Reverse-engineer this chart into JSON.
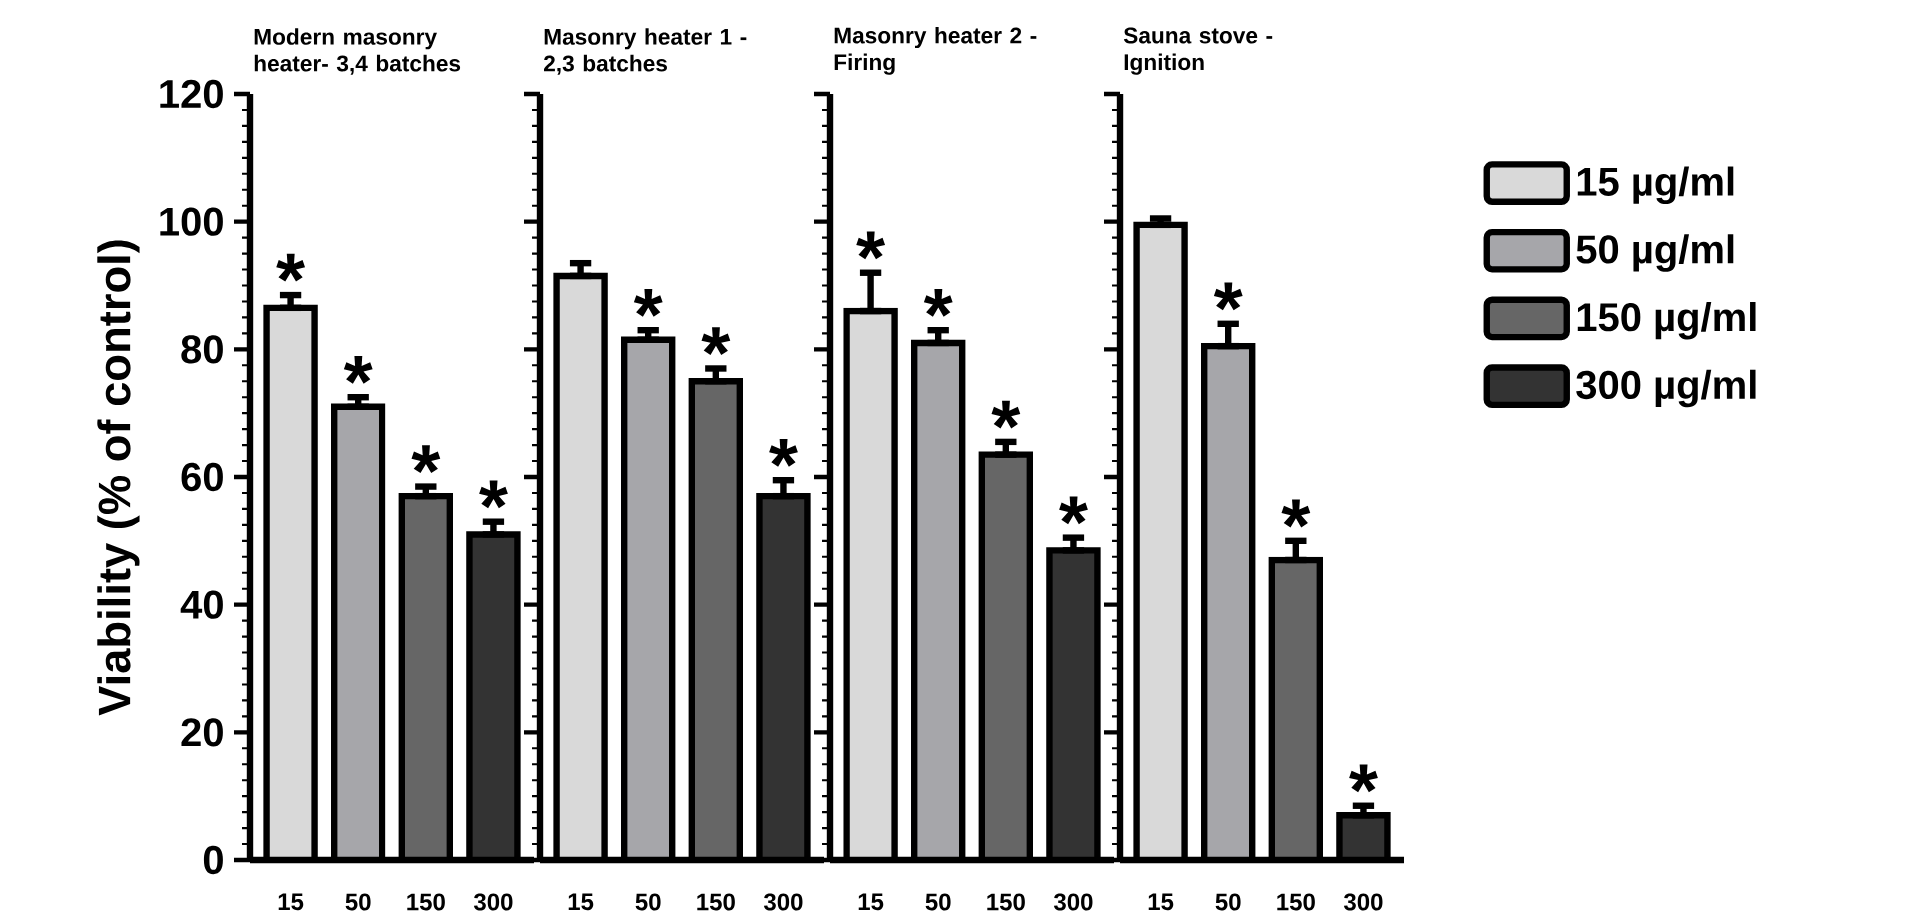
{
  "chart_data": [
    {
      "type": "bar",
      "title": "Modern masonry heater- 3,4 batches",
      "ylabel": "Viability (% of control)",
      "categories": [
        "15",
        "50",
        "150",
        "300"
      ],
      "series": [
        {
          "color": "#d9d9d9",
          "values": [
            86.5,
            null,
            null,
            null
          ],
          "errors": [
            [
              86.5,
              88.5
            ],
            null,
            null,
            null
          ]
        },
        {
          "color": "#a6a6aa",
          "values": [
            null,
            71,
            null,
            null
          ],
          "errors": [
            null,
            [
              71,
              72.5
            ],
            null,
            null
          ]
        },
        {
          "color": "#666666",
          "values": [
            null,
            null,
            57,
            null
          ],
          "errors": [
            null,
            null,
            [
              57,
              58.5
            ],
            null
          ]
        },
        {
          "color": "#333333",
          "values": [
            null,
            null,
            null,
            51
          ],
          "errors": [
            null,
            null,
            null,
            [
              51,
              53
            ]
          ]
        }
      ],
      "annotations": [
        {
          "text": "*",
          "x": "15",
          "y": 88.5
        },
        {
          "text": "*",
          "x": "50",
          "y": 72.5
        },
        {
          "text": "*",
          "x": "150",
          "y": 58.5
        },
        {
          "text": "*",
          "x": "300",
          "y": 53
        }
      ],
      "ylim": [
        0,
        120
      ],
      "yticks": [
        0,
        20,
        40,
        60,
        80,
        100,
        120
      ],
      "grid": false
    },
    {
      "type": "bar",
      "title": "Masonry heater 1 - 2,3 batches",
      "categories": [
        "15",
        "50",
        "150",
        "300"
      ],
      "series": [
        {
          "color": "#d9d9d9",
          "values": [
            91.5,
            null,
            null,
            null
          ],
          "errors": [
            [
              91.5,
              93.5
            ],
            null,
            null,
            null
          ]
        },
        {
          "color": "#a6a6aa",
          "values": [
            null,
            81.5,
            null,
            null
          ],
          "errors": [
            null,
            [
              81.5,
              83
            ],
            null,
            null
          ]
        },
        {
          "color": "#666666",
          "values": [
            null,
            null,
            75,
            null
          ],
          "errors": [
            null,
            null,
            [
              75,
              77
            ],
            null
          ]
        },
        {
          "color": "#333333",
          "values": [
            null,
            null,
            null,
            57
          ],
          "errors": [
            null,
            null,
            null,
            [
              57,
              59.5
            ]
          ]
        }
      ],
      "annotations": [
        {
          "text": "*",
          "x": "50",
          "y": 83
        },
        {
          "text": "*",
          "x": "150",
          "y": 77
        },
        {
          "text": "*",
          "x": "300",
          "y": 59.5
        }
      ],
      "ylim": [
        0,
        120
      ],
      "yticks": [
        0,
        20,
        40,
        60,
        80,
        100,
        120
      ],
      "tick_labels": "x"
    },
    {
      "type": "bar",
      "title": "Masonry heater 2 - Firing",
      "categories": [
        "15",
        "50",
        "150",
        "300"
      ],
      "series": [
        {
          "color": "#d9d9d9",
          "values": [
            86,
            null,
            null,
            null
          ],
          "errors": [
            [
              86,
              92
            ],
            null,
            null,
            null
          ]
        },
        {
          "color": "#a6a6aa",
          "values": [
            null,
            81,
            null,
            null
          ],
          "errors": [
            null,
            [
              81,
              83
            ],
            null,
            null
          ]
        },
        {
          "color": "#666666",
          "values": [
            null,
            null,
            63.5,
            null
          ],
          "errors": [
            null,
            null,
            [
              63.5,
              65.5
            ],
            null
          ]
        },
        {
          "color": "#333333",
          "values": [
            null,
            null,
            null,
            48.5
          ],
          "errors": [
            null,
            null,
            null,
            [
              48.5,
              50.5
            ]
          ]
        }
      ],
      "annotations": [
        {
          "text": "*",
          "x": "15",
          "y": 92
        },
        {
          "text": "*",
          "x": "50",
          "y": 83
        },
        {
          "text": "*",
          "x": "150",
          "y": 65.5
        },
        {
          "text": "*",
          "x": "300",
          "y": 50.5
        }
      ],
      "ylim": [
        0,
        120
      ],
      "yticks": [
        0,
        20,
        40,
        60,
        80,
        100,
        120
      ],
      "tick_labels": "x"
    },
    {
      "type": "bar",
      "title": "Sauna stove - Ignition",
      "categories": [
        "15",
        "50",
        "150",
        "300"
      ],
      "series": [
        {
          "name": "15 µg/ml",
          "color": "#d9d9d9",
          "values": [
            99.5,
            null,
            null,
            null
          ],
          "errors": [
            [
              99.5,
              100.5
            ],
            null,
            null,
            null
          ]
        },
        {
          "name": "50 µg/ml",
          "color": "#a6a6aa",
          "values": [
            null,
            80.5,
            null,
            null
          ],
          "errors": [
            null,
            [
              80.5,
              84
            ],
            null,
            null
          ]
        },
        {
          "name": "150 µg/ml",
          "color": "#666666",
          "values": [
            null,
            null,
            47,
            null
          ],
          "errors": [
            null,
            null,
            [
              47,
              50
            ],
            null
          ]
        },
        {
          "name": "300 µg/ml",
          "color": "#333333",
          "values": [
            null,
            null,
            null,
            7
          ],
          "errors": [
            null,
            null,
            null,
            [
              7,
              8.5
            ]
          ]
        }
      ],
      "annotations": [
        {
          "text": "*",
          "x": "50",
          "y": 84
        },
        {
          "text": "*",
          "x": "150",
          "y": 50
        },
        {
          "text": "*",
          "x": "300",
          "y": 8.5
        }
      ],
      "ylim": [
        0,
        120
      ],
      "yticks": [
        0,
        20,
        40,
        60,
        80,
        100,
        120
      ],
      "tick_labels": "x",
      "legend": "right"
    }
  ]
}
